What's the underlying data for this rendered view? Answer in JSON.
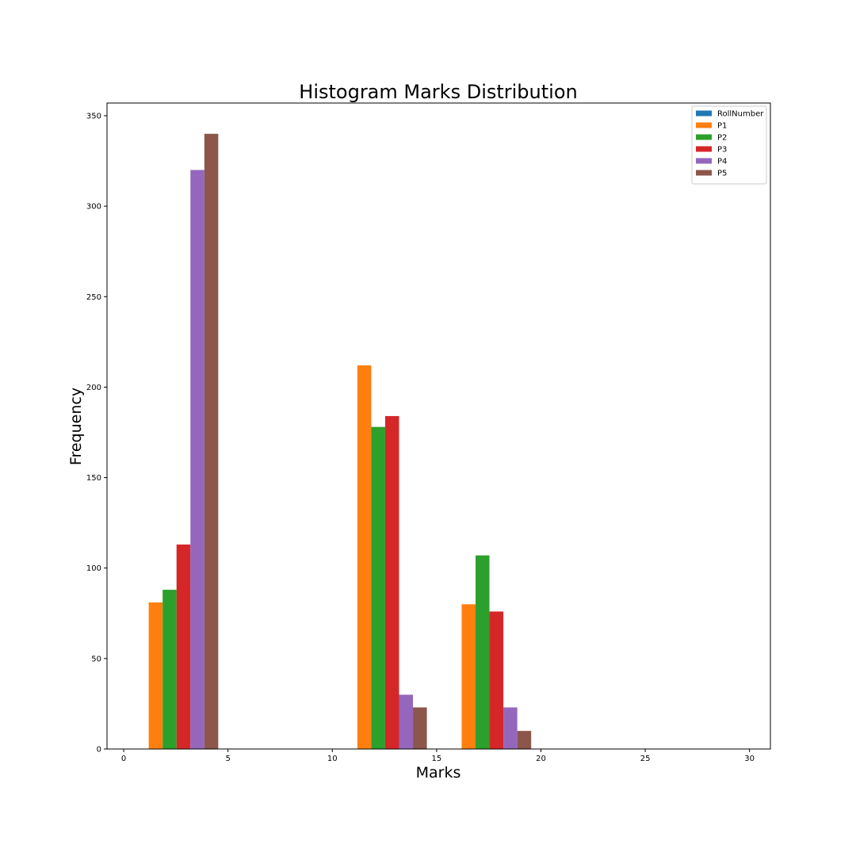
{
  "chart_data": {
    "type": "bar",
    "title": "Histogram Marks Distribution",
    "xlabel": "Marks",
    "ylabel": "Frequency",
    "xlim": [
      -0.8,
      31.0
    ],
    "ylim": [
      0,
      357
    ],
    "xticks": [
      0,
      5,
      10,
      15,
      20,
      25,
      30
    ],
    "yticks": [
      0,
      50,
      100,
      150,
      200,
      250,
      300,
      350
    ],
    "legend_position": "top-right",
    "grid": false,
    "series": [
      {
        "name": "RollNumber",
        "color": "#1f77b4",
        "bars": []
      },
      {
        "name": "P1",
        "color": "#ff7f0e",
        "bars": [
          {
            "x0": 1.2,
            "x1": 1.867,
            "value": 81
          },
          {
            "x0": 11.2,
            "x1": 11.867,
            "value": 212
          },
          {
            "x0": 16.2,
            "x1": 16.867,
            "value": 80
          }
        ]
      },
      {
        "name": "P2",
        "color": "#2ca02c",
        "bars": [
          {
            "x0": 1.867,
            "x1": 2.533,
            "value": 88
          },
          {
            "x0": 11.867,
            "x1": 12.533,
            "value": 178
          },
          {
            "x0": 16.867,
            "x1": 17.533,
            "value": 107
          }
        ]
      },
      {
        "name": "P3",
        "color": "#d62728",
        "bars": [
          {
            "x0": 2.533,
            "x1": 3.2,
            "value": 113
          },
          {
            "x0": 12.533,
            "x1": 13.2,
            "value": 184
          },
          {
            "x0": 17.533,
            "x1": 18.2,
            "value": 76
          }
        ]
      },
      {
        "name": "P4",
        "color": "#9467bd",
        "bars": [
          {
            "x0": 3.2,
            "x1": 3.867,
            "value": 320
          },
          {
            "x0": 13.2,
            "x1": 13.867,
            "value": 30
          },
          {
            "x0": 18.2,
            "x1": 18.867,
            "value": 23
          }
        ]
      },
      {
        "name": "P5",
        "color": "#8c564b",
        "bars": [
          {
            "x0": 3.867,
            "x1": 4.533,
            "value": 340
          },
          {
            "x0": 13.867,
            "x1": 14.533,
            "value": 23
          },
          {
            "x0": 18.867,
            "x1": 19.533,
            "value": 10
          }
        ]
      }
    ]
  }
}
